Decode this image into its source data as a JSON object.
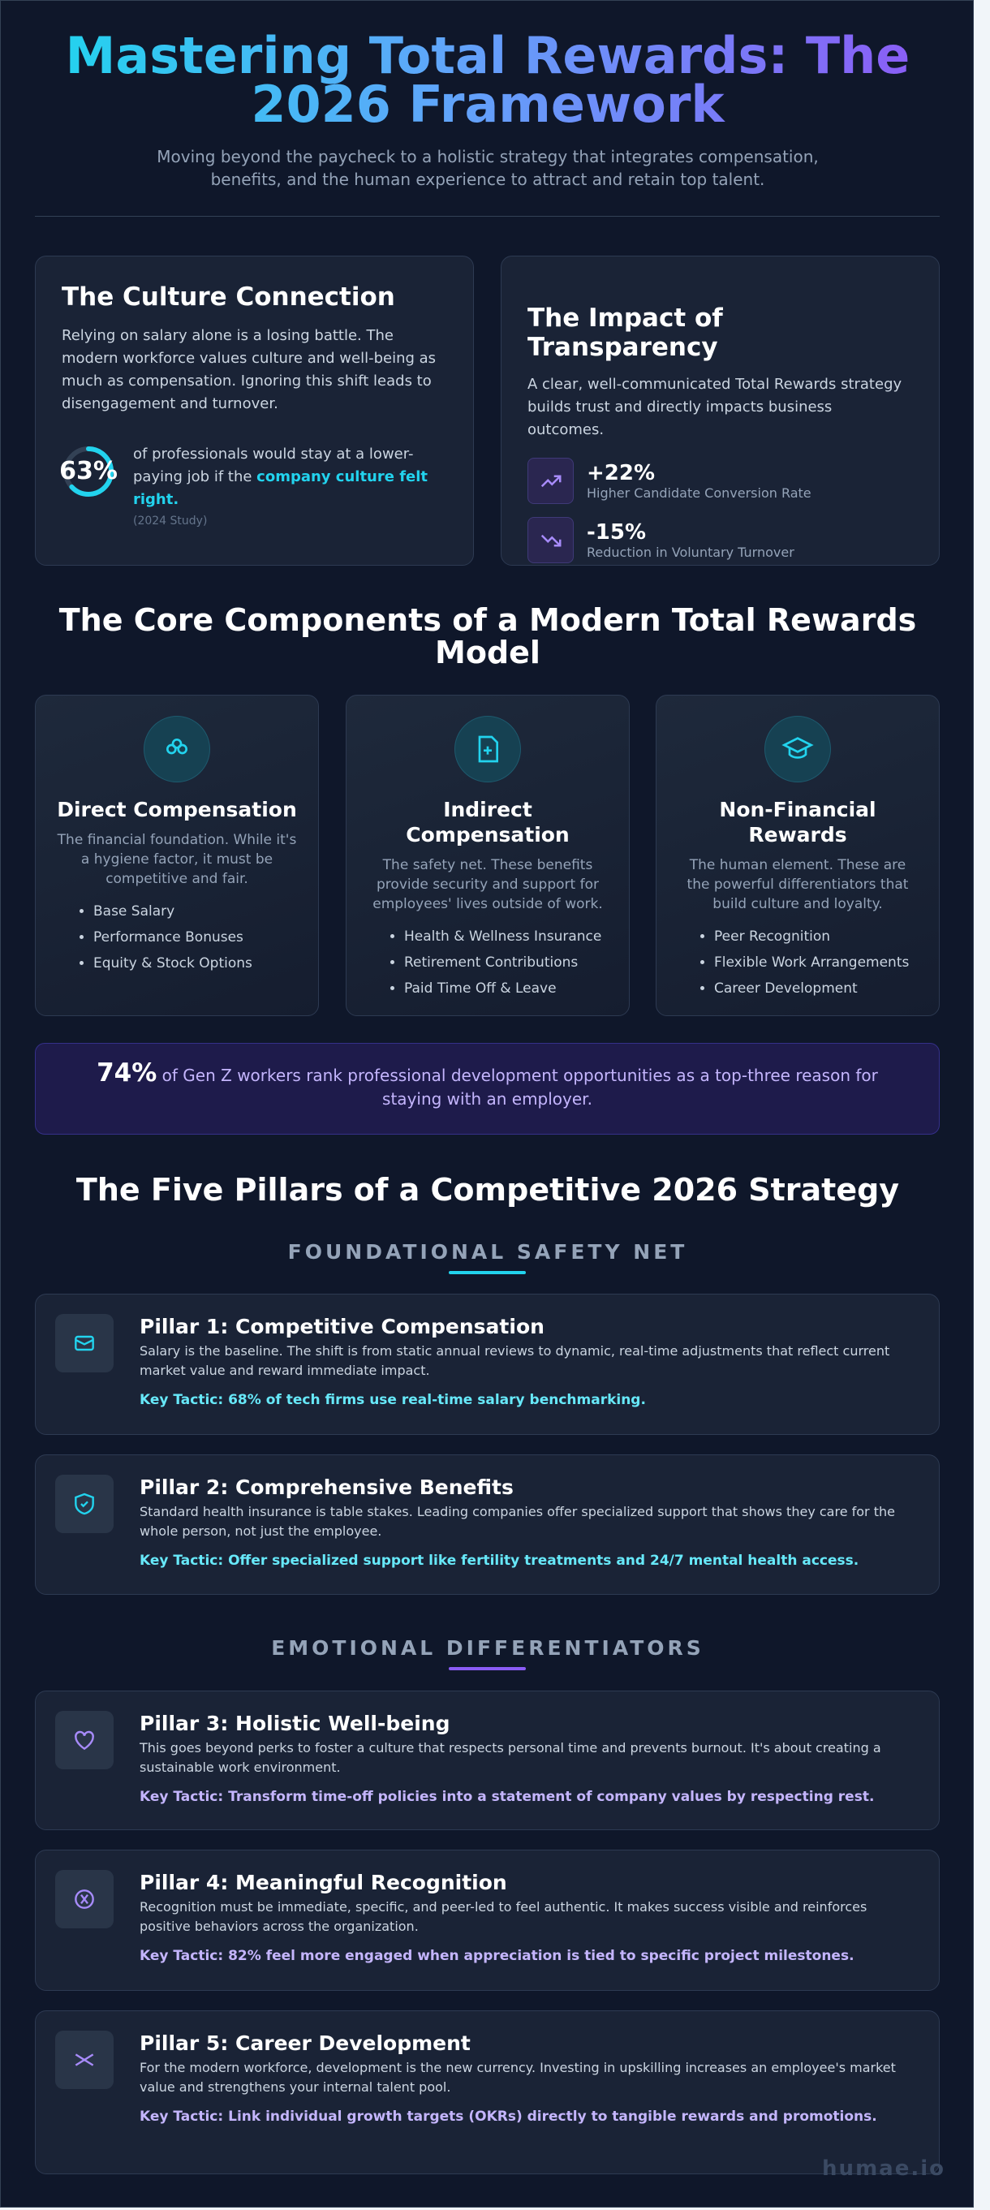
{
  "header": {
    "title": "Mastering Total Rewards: The 2026 Framework",
    "subtitle": "Moving beyond the paycheck to a holistic strategy that integrates compensation, benefits, and the human experience to attract and retain top talent."
  },
  "culture": {
    "title": "The Culture Connection",
    "body": "Relying on salary alone is a losing battle. The modern workforce values culture and well-being as much as compensation. Ignoring this shift leads to disengagement and turnover.",
    "stat": "63%",
    "text": "of professionals would stay at a lower-paying job if the ",
    "highlight": "company culture felt right.",
    "note": "(2024 Study)"
  },
  "transparency": {
    "title": "The Impact of Transparency",
    "body": "A clear, well-communicated Total Rewards strategy builds trust and directly impacts business outcomes.",
    "metrics": [
      {
        "value": "+22%",
        "label": "Higher Candidate Conversion Rate"
      },
      {
        "value": "-15%",
        "label": "Reduction in Voluntary Turnover"
      }
    ]
  },
  "components": {
    "title": "The Core Components of a Modern Total Rewards Model",
    "cards": [
      {
        "title": "Direct Compensation",
        "description": "The financial foundation. While it's a hygiene factor, it must be competitive and fair.",
        "items": [
          "Base Salary",
          "Performance Bonuses",
          "Equity & Stock Options"
        ]
      },
      {
        "title": "Indirect Compensation",
        "description": "The safety net. These benefits provide security and support for employees' lives outside of work.",
        "items": [
          "Health & Wellness Insurance",
          "Retirement Contributions",
          "Paid Time Off & Leave"
        ]
      },
      {
        "title": "Non-Financial Rewards",
        "description": "The human element. These are the powerful differentiators that build culture and loyalty.",
        "items": [
          "Peer Recognition",
          "Flexible Work Arrangements",
          "Career Development"
        ]
      }
    ]
  },
  "banner": {
    "stat": "74%",
    "text": "of Gen Z workers rank professional development opportunities as a top-three reason for staying with an employer."
  },
  "pillars": {
    "title": "The Five Pillars of a Competitive 2026 Strategy",
    "groups": [
      {
        "label": "FOUNDATIONAL SAFETY NET",
        "items": [
          {
            "title": "Pillar 1: Competitive Compensation",
            "description": "Salary is the baseline. The shift is from static annual reviews to dynamic, real-time adjustments that reflect current market value and reward immediate impact.",
            "tactic": "Key Tactic: 68% of tech firms use real-time salary benchmarking."
          },
          {
            "title": "Pillar 2: Comprehensive Benefits",
            "description": "Standard health insurance is table stakes. Leading companies offer specialized support that shows they care for the whole person, not just the employee.",
            "tactic": "Key Tactic: Offer specialized support like fertility treatments and 24/7 mental health access."
          }
        ]
      },
      {
        "label": "EMOTIONAL DIFFERENTIATORS",
        "items": [
          {
            "title": "Pillar 3: Holistic Well-being",
            "description": "This goes beyond perks to foster a culture that respects personal time and prevents burnout. It's about creating a sustainable work environment.",
            "tactic": "Key Tactic: Transform time-off policies into a statement of company values by respecting rest."
          },
          {
            "title": "Pillar 4: Meaningful Recognition",
            "description": "Recognition must be immediate, specific, and peer-led to feel authentic. It makes success visible and reinforces positive behaviors across the organization.",
            "tactic": "Key Tactic: 82% feel more engaged when appreciation is tied to specific project milestones."
          },
          {
            "title": "Pillar 5: Career Development",
            "description": "For the modern workforce, development is the new currency. Investing in upskilling increases an employee's market value and strengthens your internal talent pool.",
            "tactic": "Key Tactic: Link individual growth targets (OKRs) directly to tangible rewards and promotions."
          }
        ]
      }
    ]
  },
  "footer": {
    "brand": "humae.io"
  }
}
